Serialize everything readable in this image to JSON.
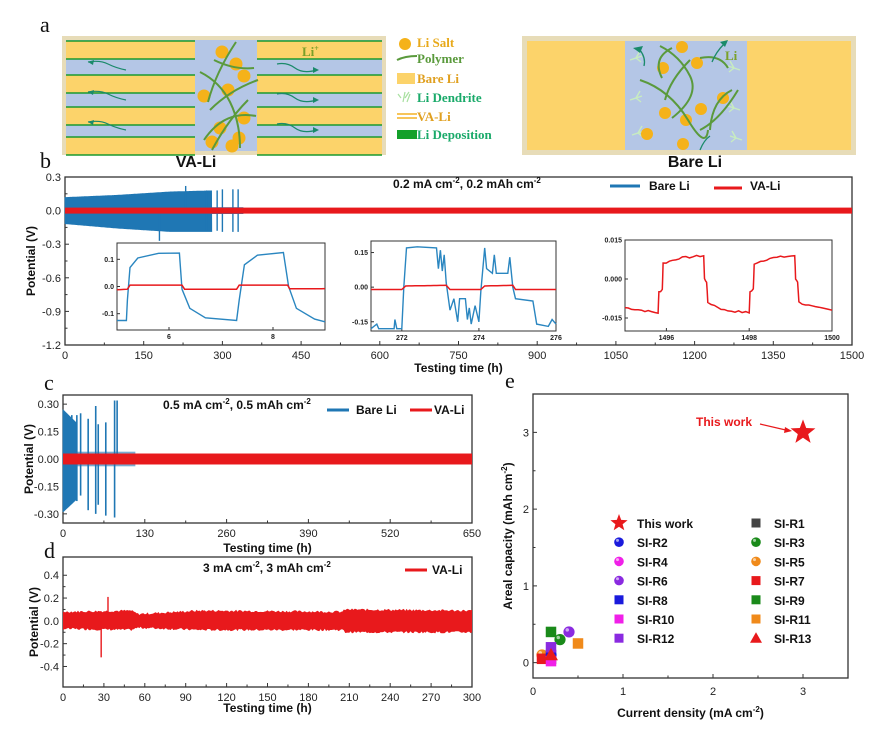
{
  "panels": {
    "a": "a",
    "b": "b",
    "c": "c",
    "d": "d",
    "e": "e"
  },
  "schematic": {
    "left_caption": "VA-Li",
    "right_caption": "Bare Li",
    "li_ion_label": "Li",
    "li_ion_sup": "+",
    "legend": [
      {
        "label": "Li Salt",
        "icon": "circle",
        "color": "#f5b21a"
      },
      {
        "label": "Polymer",
        "icon": "curve",
        "color": "#5a9a3c"
      },
      {
        "label": "Bare Li",
        "icon": "rect",
        "color": "#fcd36a"
      },
      {
        "label": "Li Dendrite",
        "icon": "dendrite",
        "color": "#a8e0a0"
      },
      {
        "label": "VA-Li",
        "icon": "double-line",
        "color": "#f7c55a"
      },
      {
        "label": "Li Deposition",
        "icon": "rect",
        "color": "#14a02a"
      }
    ],
    "colors": {
      "li": "#fcd36a",
      "electrolyte": "#b4c6e6",
      "deposition": "#1a9a30",
      "frame": "#e7dcb8",
      "arrow": "#1a8a6a"
    }
  },
  "chart_data": [
    {
      "id": "b",
      "type": "line",
      "title": "",
      "annotation": "0.2 mA cm-2, 0.2 mAh cm-2",
      "annotation_parts": [
        "0.2 mA cm",
        "-2",
        ", 0.2 mAh cm",
        "-2"
      ],
      "xlabel": "Testing time (h)",
      "ylabel": "Potential (V)",
      "xlim": [
        0,
        1500
      ],
      "ylim": [
        -1.2,
        0.3
      ],
      "xticks": [
        0,
        150,
        300,
        450,
        600,
        750,
        900,
        1050,
        1200,
        1350,
        1500
      ],
      "yticks": [
        "0.3",
        "0.0",
        "-0.3",
        "-0.6",
        "-0.9",
        "-1.2"
      ],
      "ytick_values": [
        0.3,
        0.0,
        -0.3,
        -0.6,
        -0.9,
        -1.2
      ],
      "legend": [
        {
          "name": "Bare Li",
          "color": "#1f77b4"
        },
        {
          "name": "VA-Li",
          "color": "#e8191c"
        }
      ],
      "legend_position": "top-right",
      "series": [
        {
          "name": "Bare Li",
          "color": "#1f77b4",
          "envelope": [
            [
              0,
              0.12,
              -0.12
            ],
            [
              100,
              0.14,
              -0.16
            ],
            [
              200,
              0.17,
              -0.19
            ],
            [
              280,
              0.18,
              -0.19
            ],
            [
              340,
              0.02,
              -0.02
            ]
          ],
          "spikes": [
            [
              180,
              -0.27
            ],
            [
              230,
              0.22
            ],
            [
              270,
              0.18
            ],
            [
              290,
              0.18
            ],
            [
              300,
              -0.19
            ],
            [
              320,
              0.19
            ],
            [
              330,
              -0.19
            ]
          ],
          "end_time": 340
        },
        {
          "name": "VA-Li",
          "color": "#e8191c",
          "amplitude": 0.01,
          "end_time": 1500
        }
      ],
      "insets": [
        {
          "xticks": [
            "6",
            "8"
          ],
          "xtick_values": [
            6,
            8
          ],
          "xlim": [
            5,
            9
          ],
          "yticks": [
            "0.1",
            "0.0",
            "-0.1"
          ],
          "ytick_values": [
            0.1,
            0.0,
            -0.1
          ],
          "ylim": [
            -0.16,
            0.16
          ],
          "bare": [
            [
              5,
              -0.125
            ],
            [
              5.18,
              -0.125
            ],
            [
              5.2,
              -0.05
            ],
            [
              5.25,
              0.07
            ],
            [
              5.4,
              0.105
            ],
            [
              5.8,
              0.122
            ],
            [
              6.2,
              0.123
            ],
            [
              6.25,
              -0.01
            ],
            [
              6.4,
              -0.08
            ],
            [
              6.7,
              -0.115
            ],
            [
              7.3,
              -0.125
            ],
            [
              7.35,
              -0.05
            ],
            [
              7.45,
              0.08
            ],
            [
              7.7,
              0.115
            ],
            [
              8.2,
              0.125
            ],
            [
              8.3,
              0.0
            ],
            [
              8.45,
              -0.08
            ],
            [
              8.8,
              -0.12
            ],
            [
              9,
              -0.13
            ]
          ],
          "va": [
            [
              5,
              -0.012
            ],
            [
              5.2,
              -0.01
            ],
            [
              5.25,
              0.005
            ],
            [
              6.25,
              0.005
            ],
            [
              6.3,
              -0.01
            ],
            [
              7.3,
              -0.01
            ],
            [
              7.35,
              0.005
            ],
            [
              8.28,
              0.005
            ],
            [
              8.32,
              -0.008
            ],
            [
              9,
              -0.008
            ]
          ]
        },
        {
          "xticks": [
            "272",
            "274",
            "276"
          ],
          "xtick_values": [
            272,
            274,
            276
          ],
          "xlim": [
            271.2,
            276
          ],
          "yticks": [
            "0.15",
            "0.00",
            "-0.15"
          ],
          "ytick_values": [
            0.15,
            0.0,
            -0.15
          ],
          "ylim": [
            -0.19,
            0.2
          ],
          "bare": [
            [
              271.2,
              -0.18
            ],
            [
              271.35,
              -0.16
            ],
            [
              271.4,
              -0.18
            ],
            [
              271.8,
              -0.18
            ],
            [
              271.82,
              -0.14
            ],
            [
              271.87,
              -0.18
            ],
            [
              272.0,
              -0.18
            ],
            [
              272.05,
              0.0
            ],
            [
              272.12,
              0.17
            ],
            [
              272.4,
              0.175
            ],
            [
              272.9,
              0.17
            ],
            [
              272.95,
              0.08
            ],
            [
              273.0,
              0.16
            ],
            [
              273.05,
              0.07
            ],
            [
              273.1,
              0.14
            ],
            [
              273.15,
              0.02
            ],
            [
              273.25,
              -0.1
            ],
            [
              273.35,
              -0.05
            ],
            [
              273.45,
              -0.15
            ],
            [
              273.5,
              -0.05
            ],
            [
              273.65,
              -0.05
            ],
            [
              273.7,
              -0.14
            ],
            [
              273.75,
              -0.09
            ],
            [
              273.8,
              -0.16
            ],
            [
              273.9,
              -0.08
            ],
            [
              274.0,
              -0.15
            ],
            [
              274.05,
              -0.02
            ],
            [
              274.15,
              0.17
            ],
            [
              274.2,
              0.08
            ],
            [
              274.35,
              0.06
            ],
            [
              274.4,
              0.14
            ],
            [
              274.45,
              0.06
            ],
            [
              274.75,
              0.06
            ],
            [
              274.8,
              0.13
            ],
            [
              274.88,
              0.0
            ],
            [
              274.95,
              -0.05
            ],
            [
              275.4,
              -0.06
            ],
            [
              275.5,
              -0.16
            ],
            [
              275.8,
              -0.17
            ],
            [
              275.9,
              -0.14
            ],
            [
              276,
              -0.16
            ]
          ],
          "va": [
            [
              271.2,
              -0.01
            ],
            [
              272.0,
              -0.01
            ],
            [
              272.1,
              0.005
            ],
            [
              273.15,
              0.008
            ],
            [
              273.25,
              -0.01
            ],
            [
              274.05,
              -0.01
            ],
            [
              274.15,
              0.005
            ],
            [
              274.88,
              0.008
            ],
            [
              274.95,
              -0.01
            ],
            [
              276,
              -0.01
            ]
          ]
        },
        {
          "xticks": [
            "1496",
            "1498",
            "1500"
          ],
          "xtick_values": [
            1496,
            1498,
            1500
          ],
          "xlim": [
            1495,
            1500
          ],
          "yticks": [
            "0.015",
            "0.000",
            "-0.015"
          ],
          "ytick_values": [
            0.015,
            0.0,
            -0.015
          ],
          "ylim": [
            -0.02,
            0.015
          ],
          "va": [
            [
              1495,
              -0.011
            ],
            [
              1495.8,
              -0.013
            ],
            [
              1495.82,
              -0.005
            ],
            [
              1495.9,
              -0.004
            ],
            [
              1495.92,
              0.006
            ],
            [
              1496.3,
              0.008
            ],
            [
              1496.9,
              0.009
            ],
            [
              1496.92,
              0.0
            ],
            [
              1496.97,
              -0.001
            ],
            [
              1497.0,
              -0.009
            ],
            [
              1497.4,
              -0.012
            ],
            [
              1498.0,
              -0.013
            ],
            [
              1498.02,
              -0.005
            ],
            [
              1498.1,
              -0.004
            ],
            [
              1498.12,
              0.006
            ],
            [
              1498.5,
              0.008
            ],
            [
              1499.1,
              0.009
            ],
            [
              1499.12,
              0.0
            ],
            [
              1499.17,
              -0.001
            ],
            [
              1499.2,
              -0.009
            ],
            [
              1499.6,
              -0.011
            ],
            [
              1500,
              -0.012
            ]
          ]
        }
      ]
    },
    {
      "id": "c",
      "type": "line",
      "annotation_parts": [
        "0.5 mA cm",
        "-2",
        ", 0.5 mAh cm",
        "-2"
      ],
      "xlabel": "Testing time (h)",
      "ylabel": "Potential (V)",
      "xlim": [
        0,
        650
      ],
      "ylim": [
        -0.35,
        0.35
      ],
      "xticks": [
        0,
        130,
        260,
        390,
        520,
        650
      ],
      "yticks": [
        "0.30",
        "0.15",
        "0.00",
        "-0.15",
        "-0.30"
      ],
      "ytick_values": [
        0.3,
        0.15,
        0.0,
        -0.15,
        -0.3
      ],
      "legend": [
        {
          "name": "Bare Li",
          "color": "#1f77b4"
        },
        {
          "name": "VA-Li",
          "color": "#e8191c"
        }
      ],
      "legend_position": "top-right",
      "series": [
        {
          "name": "Bare Li",
          "color": "#1f77b4",
          "dense_until": 22,
          "dense_amp": [
            0.27,
            -0.29
          ],
          "spikes": [
            [
              14,
              0.24,
              -0.2
            ],
            [
              22,
              0.24,
              -0.23
            ],
            [
              28,
              0.25,
              -0.2
            ],
            [
              40,
              0.22,
              -0.28
            ],
            [
              52,
              0.29,
              -0.3
            ],
            [
              56,
              0.19,
              -0.25
            ],
            [
              68,
              0.2,
              -0.31
            ],
            [
              82,
              0.32,
              -0.32
            ],
            [
              86,
              0.32,
              -0.02
            ]
          ],
          "end_time": 115
        },
        {
          "name": "VA-Li",
          "color": "#e8191c",
          "amplitude": 0.03,
          "end_time": 650
        }
      ]
    },
    {
      "id": "d",
      "type": "line",
      "annotation_parts": [
        "3 mA cm",
        "-2",
        ", 3 mAh cm",
        "-2"
      ],
      "xlabel": "Testing time (h)",
      "ylabel": "Potential (V)",
      "xlim": [
        0,
        300
      ],
      "ylim": [
        -0.58,
        0.56
      ],
      "xticks": [
        0,
        30,
        60,
        90,
        120,
        150,
        180,
        210,
        240,
        270,
        300
      ],
      "yticks": [
        "0.4",
        "0.2",
        "0.0",
        "-0.2",
        "-0.4"
      ],
      "ytick_values": [
        0.4,
        0.2,
        0.0,
        -0.2,
        -0.4
      ],
      "legend": [
        {
          "name": "VA-Li",
          "color": "#e8191c"
        }
      ],
      "legend_position": "top-right",
      "series": [
        {
          "name": "VA-Li",
          "color": "#e8191c",
          "envelope": [
            [
              0,
              0.08,
              -0.07
            ],
            [
              50,
              0.09,
              -0.08
            ],
            [
              55,
              0.06,
              -0.06
            ],
            [
              100,
              0.09,
              -0.08
            ],
            [
              205,
              0.08,
              -0.08
            ],
            [
              207,
              0.1,
              -0.1
            ],
            [
              300,
              0.09,
              -0.1
            ]
          ],
          "spikes": [
            [
              28,
              -0.32
            ],
            [
              33,
              0.21
            ]
          ],
          "end_time": 300
        }
      ]
    },
    {
      "id": "e",
      "type": "scatter",
      "xlabel": "Current density (mA cm-2)",
      "xlabel_parts": [
        "Current density (mA cm",
        "-2",
        ")"
      ],
      "ylabel_parts": [
        "Areal capacity (mAh cm",
        "-2",
        ")"
      ],
      "ylabel": "Areal capacity (mAh cm-2)",
      "xlim": [
        0,
        3.5
      ],
      "ylim": [
        -0.2,
        3.5
      ],
      "xticks": [
        0,
        1,
        2,
        3
      ],
      "yticks": [
        0,
        1,
        2,
        3
      ],
      "annotation": "This work",
      "legend_position": "center-right",
      "points": [
        {
          "name": "This work",
          "marker": "star",
          "color": "#e8191c",
          "x": 3.0,
          "y": 3.0
        },
        {
          "name": "SI-R1",
          "marker": "square",
          "color": "#444444",
          "x": 0.2,
          "y": 0.05
        },
        {
          "name": "SI-R2",
          "marker": "sphere",
          "color": "#1a1adc",
          "x": 0.2,
          "y": 0.1
        },
        {
          "name": "SI-R3",
          "marker": "sphere",
          "color": "#1a8a1a",
          "x": 0.3,
          "y": 0.3
        },
        {
          "name": "SI-R4",
          "marker": "sphere",
          "color": "#f020e8",
          "x": 0.2,
          "y": 0.05
        },
        {
          "name": "SI-R5",
          "marker": "sphere",
          "color": "#f08a1a",
          "x": 0.1,
          "y": 0.1
        },
        {
          "name": "SI-R6",
          "marker": "sphere",
          "color": "#8a2ae0",
          "x": 0.4,
          "y": 0.4
        },
        {
          "name": "SI-R7",
          "marker": "square",
          "color": "#e8191c",
          "x": 0.1,
          "y": 0.05
        },
        {
          "name": "SI-R8",
          "marker": "square",
          "color": "#1a1adc",
          "x": 0.2,
          "y": 0.1
        },
        {
          "name": "SI-R9",
          "marker": "square",
          "color": "#1a8a1a",
          "x": 0.2,
          "y": 0.4
        },
        {
          "name": "SI-R10",
          "marker": "square",
          "color": "#f020e8",
          "x": 0.2,
          "y": 0.02
        },
        {
          "name": "SI-R11",
          "marker": "square",
          "color": "#f08a1a",
          "x": 0.5,
          "y": 0.25
        },
        {
          "name": "SI-R12",
          "marker": "square",
          "color": "#8a2ae0",
          "x": 0.2,
          "y": 0.2
        },
        {
          "name": "SI-R13",
          "marker": "triangle",
          "color": "#e8191c",
          "x": 0.2,
          "y": 0.1
        }
      ],
      "legend_order": [
        [
          "This work",
          "SI-R1"
        ],
        [
          "SI-R2",
          "SI-R3"
        ],
        [
          "SI-R4",
          "SI-R5"
        ],
        [
          "SI-R6",
          "SI-R7"
        ],
        [
          "SI-R8",
          "SI-R9"
        ],
        [
          "SI-R10",
          "SI-R11"
        ],
        [
          "SI-R12",
          "SI-R13"
        ]
      ]
    }
  ]
}
